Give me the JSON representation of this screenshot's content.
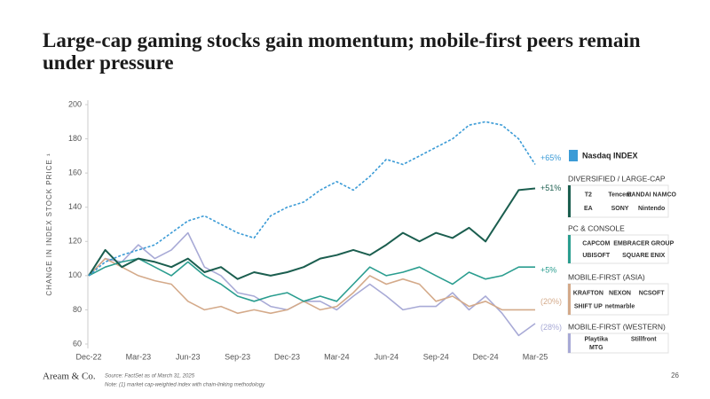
{
  "chart_data": {
    "type": "line",
    "title": "Large-cap gaming stocks gain momentum; mobile-first peers remain under pressure",
    "y_label": "CHANGE IN INDEX STOCK PRICE ¹",
    "categories": [
      "Dec-22",
      null,
      null,
      "Mar-23",
      null,
      null,
      "Jun-23",
      null,
      null,
      "Sep-23",
      null,
      null,
      "Dec-23",
      null,
      null,
      "Mar-24",
      null,
      null,
      "Jun-24",
      null,
      null,
      "Sep-24",
      null,
      null,
      "Dec-24",
      null,
      null,
      "Mar-25"
    ],
    "ylim": [
      60,
      200
    ],
    "yticks": [
      60,
      80,
      100,
      120,
      140,
      160,
      180,
      200
    ],
    "grid": false,
    "series": [
      {
        "name": "Nasdaq INDEX",
        "color": "#3b9bd6",
        "dashed": true,
        "end_label": "+65%",
        "logos": [],
        "values": [
          100,
          108,
          112,
          115,
          118,
          125,
          132,
          135,
          130,
          125,
          122,
          135,
          140,
          143,
          150,
          155,
          150,
          158,
          168,
          165,
          170,
          175,
          180,
          188,
          190,
          188,
          180,
          165
        ]
      },
      {
        "name": "DIVERSIFIED / LARGE-CAP",
        "color": "#1b5e4f",
        "dashed": false,
        "end_label": "+51%",
        "logos": [
          "T2",
          "Tencent",
          "BANDAI NAMCO",
          "EA",
          "SONY",
          "Nintendo"
        ],
        "values": [
          100,
          115,
          105,
          110,
          108,
          105,
          110,
          102,
          105,
          98,
          102,
          100,
          102,
          105,
          110,
          112,
          115,
          112,
          118,
          125,
          120,
          125,
          122,
          128,
          120,
          135,
          150,
          151
        ]
      },
      {
        "name": "PC & CONSOLE",
        "color": "#2a9d8f",
        "dashed": false,
        "end_label": "+5%",
        "logos": [
          "CAPCOM",
          "EMBRACER GROUP",
          "UBISOFT",
          "SQUARE ENIX"
        ],
        "values": [
          100,
          105,
          108,
          110,
          105,
          100,
          108,
          100,
          95,
          88,
          85,
          88,
          90,
          85,
          88,
          85,
          95,
          105,
          100,
          102,
          105,
          100,
          95,
          102,
          98,
          100,
          105,
          105
        ]
      },
      {
        "name": "MOBILE-FIRST (ASIA)",
        "color": "#d4aa8a",
        "dashed": false,
        "end_label": "(20%)",
        "logos": [
          "KRAFTON",
          "NEXON",
          "NCSOFT",
          "SHIFT UP",
          "netmarble"
        ],
        "values": [
          100,
          110,
          105,
          100,
          97,
          95,
          85,
          80,
          82,
          78,
          80,
          78,
          80,
          85,
          80,
          82,
          90,
          100,
          95,
          98,
          95,
          85,
          88,
          82,
          85,
          80,
          80,
          80
        ]
      },
      {
        "name": "MOBILE-FIRST (WESTERN)",
        "color": "#a8aad6",
        "dashed": false,
        "end_label": "(28%)",
        "logos": [
          "Playtika",
          "Stillfront",
          "MTG"
        ],
        "values": [
          100,
          110,
          108,
          118,
          110,
          115,
          125,
          105,
          100,
          90,
          88,
          82,
          80,
          85,
          85,
          80,
          88,
          95,
          88,
          80,
          82,
          82,
          90,
          80,
          88,
          78,
          65,
          72
        ]
      }
    ],
    "brand": "Aream & Co.",
    "source": "Source: FactSet as of March 31, 2025",
    "note": "Note: (1) market cap-weighted index with chain-linking methodology",
    "page_number": "26"
  }
}
